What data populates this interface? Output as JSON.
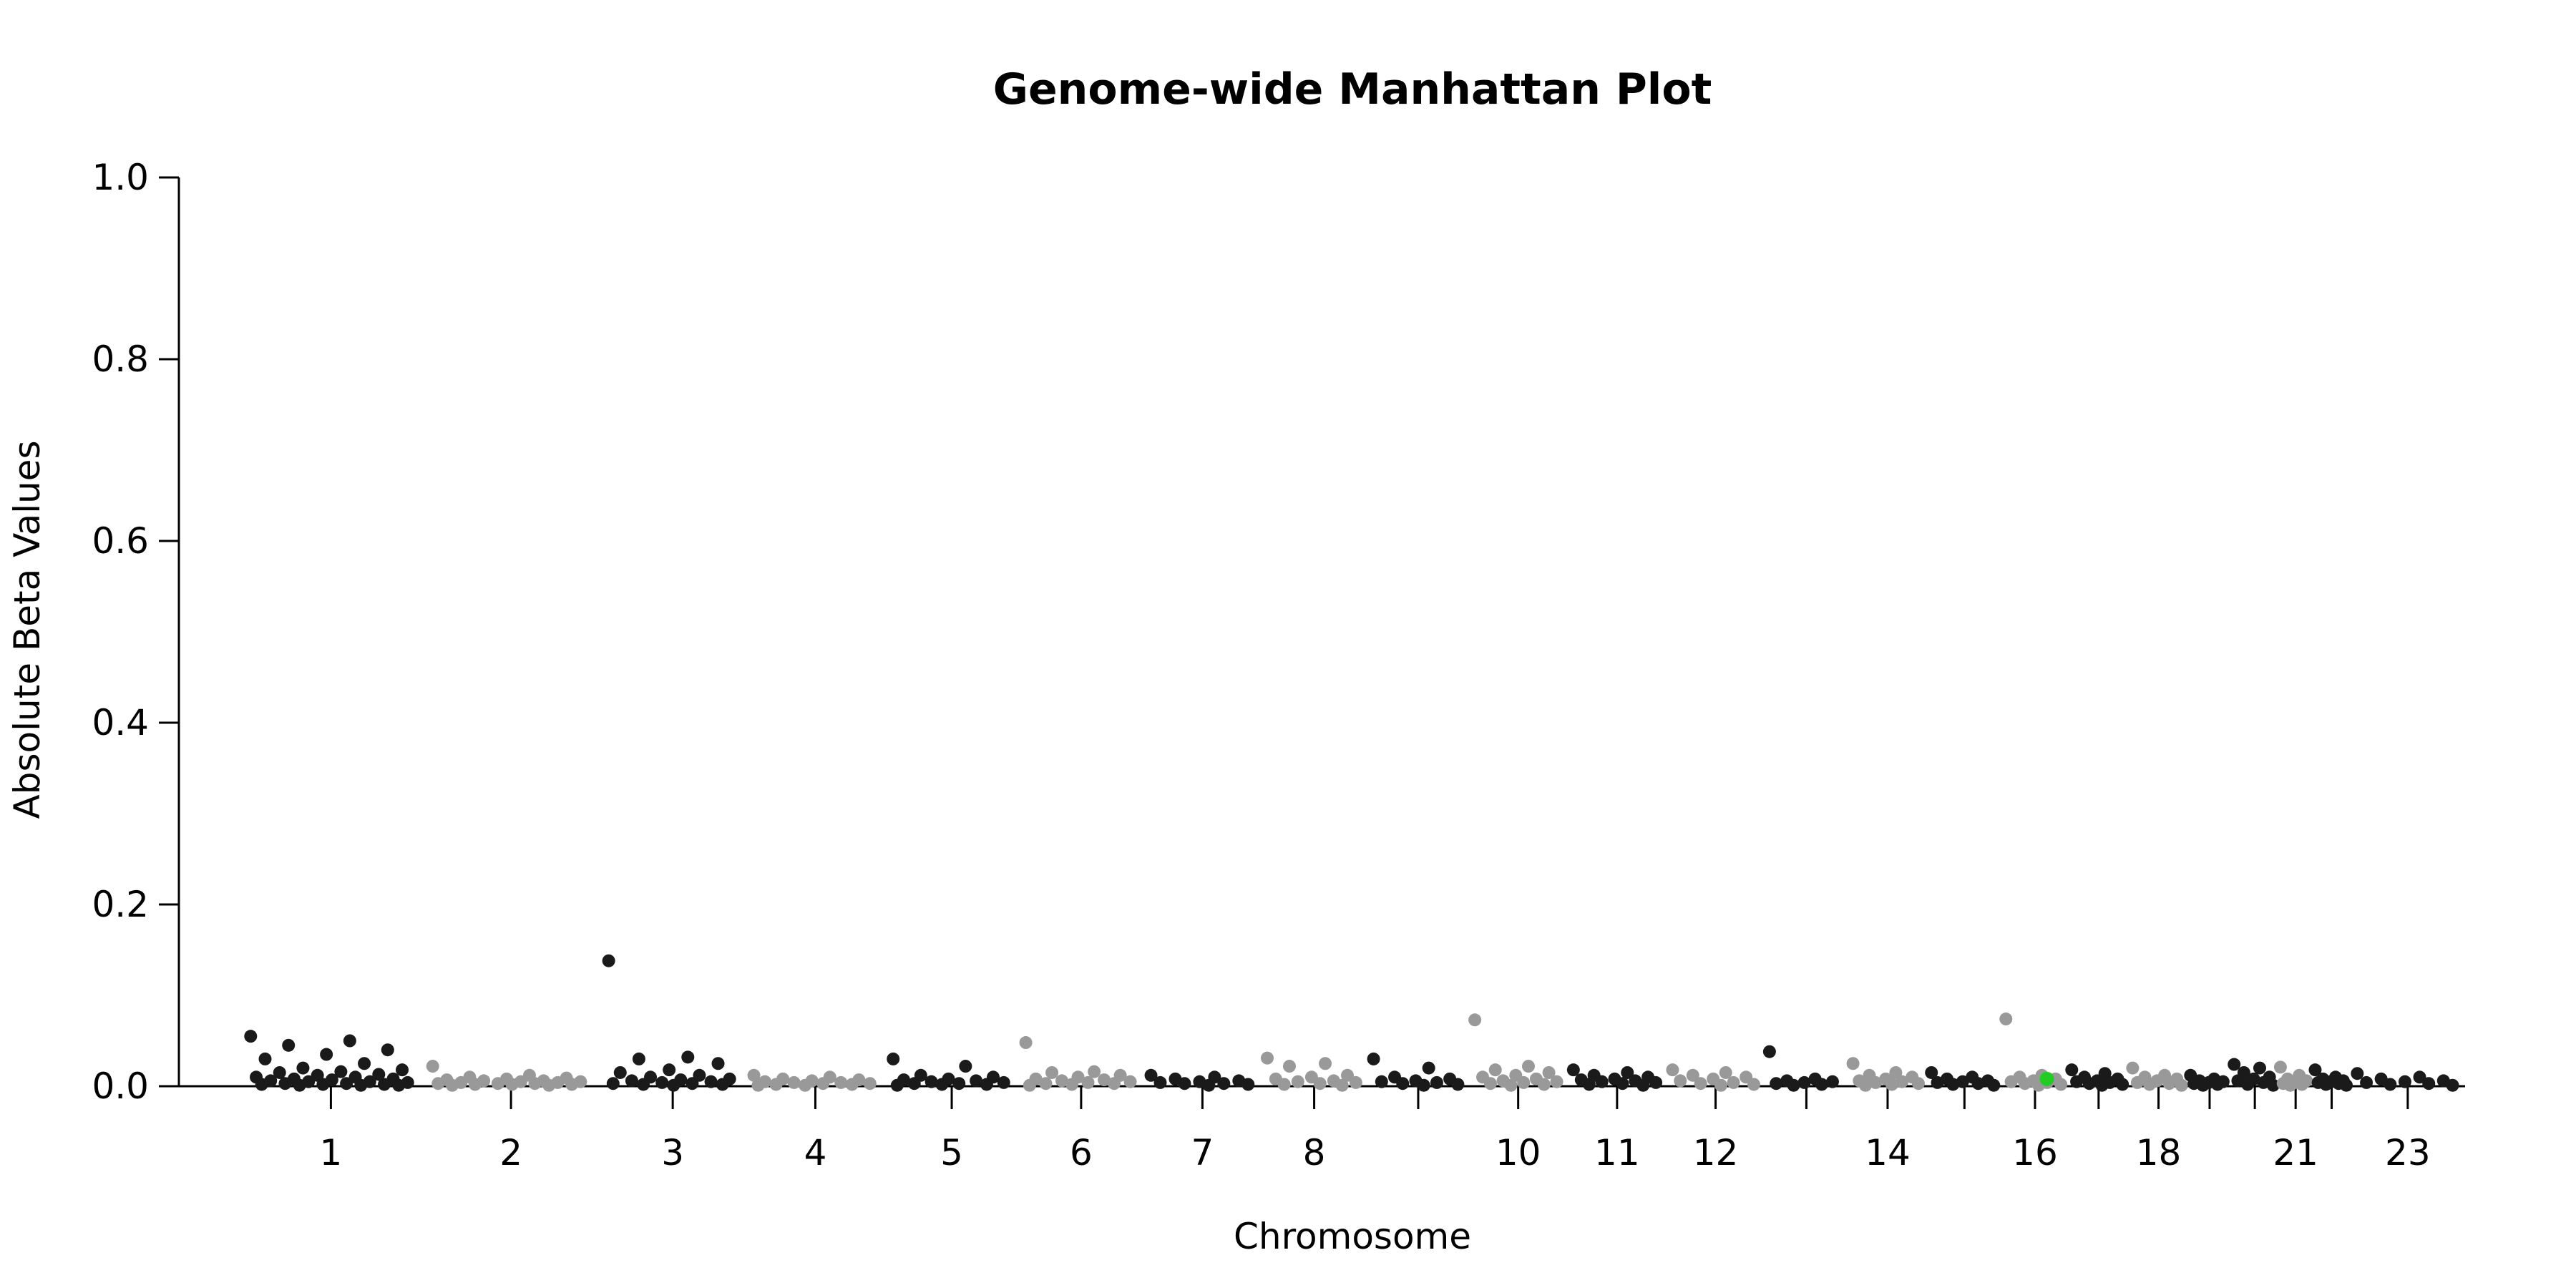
{
  "chart_data": {
    "type": "scatter",
    "title": "Genome-wide Manhattan Plot",
    "xlabel": "Chromosome",
    "ylabel": "Absolute Beta Values",
    "ylim": [
      0,
      1.0
    ],
    "y_ticks": [
      "0.0",
      "0.2",
      "0.4",
      "0.6",
      "0.8",
      "1.0"
    ],
    "x_tick_labels": [
      "1",
      "2",
      "3",
      "4",
      "5",
      "6",
      "7",
      "8",
      "10",
      "11",
      "12",
      "14",
      "16",
      "18",
      "21",
      "23"
    ],
    "grid": false,
    "legend": "none",
    "colors": {
      "odd": "#1a1a1a",
      "even": "#999999",
      "highlight": "#22cc22"
    },
    "chromosomes": [
      {
        "chr": 1,
        "label": "1",
        "color": "#1a1a1a",
        "points": [
          0.055,
          0.05,
          0.045,
          0.04,
          0.035,
          0.03,
          0.025,
          0.02,
          0.018,
          0.016,
          0.015,
          0.013,
          0.012,
          0.01,
          0.01,
          0.008,
          0.008,
          0.007,
          0.006,
          0.005,
          0.005,
          0.004,
          0.003,
          0.003,
          0.002,
          0.002,
          0.002,
          0.001,
          0.001,
          0.001
        ]
      },
      {
        "chr": 2,
        "label": "2",
        "color": "#999999",
        "points": [
          0.022,
          0.012,
          0.01,
          0.009,
          0.008,
          0.007,
          0.006,
          0.006,
          0.005,
          0.005,
          0.004,
          0.004,
          0.003,
          0.003,
          0.003,
          0.002,
          0.002,
          0.002,
          0.001,
          0.001
        ]
      },
      {
        "chr": 3,
        "label": "3",
        "color": "#1a1a1a",
        "points": [
          0.138,
          0.032,
          0.03,
          0.025,
          0.018,
          0.015,
          0.012,
          0.01,
          0.008,
          0.007,
          0.006,
          0.005,
          0.004,
          0.003,
          0.003,
          0.002,
          0.002,
          0.001
        ]
      },
      {
        "chr": 4,
        "label": "4",
        "color": "#999999",
        "points": [
          0.012,
          0.01,
          0.008,
          0.007,
          0.006,
          0.005,
          0.004,
          0.004,
          0.003,
          0.003,
          0.002,
          0.002,
          0.001,
          0.001
        ]
      },
      {
        "chr": 5,
        "label": "5",
        "color": "#1a1a1a",
        "points": [
          0.03,
          0.022,
          0.012,
          0.01,
          0.008,
          0.007,
          0.006,
          0.005,
          0.004,
          0.003,
          0.003,
          0.002,
          0.002,
          0.001
        ]
      },
      {
        "chr": 6,
        "label": "6",
        "color": "#999999",
        "points": [
          0.048,
          0.016,
          0.015,
          0.012,
          0.01,
          0.008,
          0.007,
          0.006,
          0.005,
          0.004,
          0.003,
          0.003,
          0.002,
          0.001
        ]
      },
      {
        "chr": 7,
        "label": "7",
        "color": "#1a1a1a",
        "points": [
          0.012,
          0.01,
          0.008,
          0.006,
          0.005,
          0.004,
          0.003,
          0.003,
          0.002,
          0.001
        ]
      },
      {
        "chr": 8,
        "label": "8",
        "color": "#999999",
        "points": [
          0.031,
          0.025,
          0.022,
          0.012,
          0.01,
          0.008,
          0.006,
          0.005,
          0.004,
          0.003,
          0.002,
          0.001
        ]
      },
      {
        "chr": 9,
        "label": "",
        "color": "#1a1a1a",
        "points": [
          0.03,
          0.02,
          0.01,
          0.008,
          0.006,
          0.005,
          0.004,
          0.003,
          0.002,
          0.001
        ]
      },
      {
        "chr": 10,
        "label": "10",
        "color": "#999999",
        "points": [
          0.073,
          0.022,
          0.018,
          0.015,
          0.012,
          0.01,
          0.008,
          0.006,
          0.005,
          0.004,
          0.003,
          0.002,
          0.001
        ]
      },
      {
        "chr": 11,
        "label": "11",
        "color": "#1a1a1a",
        "points": [
          0.018,
          0.015,
          0.012,
          0.01,
          0.008,
          0.007,
          0.006,
          0.005,
          0.004,
          0.003,
          0.002,
          0.001
        ]
      },
      {
        "chr": 12,
        "label": "12",
        "color": "#999999",
        "points": [
          0.018,
          0.015,
          0.012,
          0.01,
          0.008,
          0.006,
          0.004,
          0.003,
          0.002,
          0.001
        ]
      },
      {
        "chr": 13,
        "label": "",
        "color": "#1a1a1a",
        "points": [
          0.038,
          0.008,
          0.006,
          0.005,
          0.004,
          0.003,
          0.002,
          0.001
        ]
      },
      {
        "chr": 14,
        "label": "14",
        "color": "#999999",
        "points": [
          0.025,
          0.015,
          0.012,
          0.01,
          0.008,
          0.006,
          0.005,
          0.004,
          0.003,
          0.002,
          0.001
        ]
      },
      {
        "chr": 15,
        "label": "",
        "color": "#1a1a1a",
        "points": [
          0.015,
          0.01,
          0.008,
          0.006,
          0.005,
          0.004,
          0.003,
          0.002,
          0.001
        ]
      },
      {
        "chr": 16,
        "label": "16",
        "color": "#999999",
        "points": [
          0.074,
          0.012,
          0.01,
          0.008,
          0.006,
          0.005,
          0.004,
          0.003,
          0.002,
          0.001
        ]
      },
      {
        "chr": 17,
        "label": "",
        "color": "#1a1a1a",
        "points": [
          0.018,
          0.014,
          0.01,
          0.008,
          0.006,
          0.005,
          0.004,
          0.003,
          0.002,
          0.001
        ]
      },
      {
        "chr": 18,
        "label": "18",
        "color": "#999999",
        "points": [
          0.02,
          0.012,
          0.01,
          0.008,
          0.006,
          0.004,
          0.003,
          0.002,
          0.001
        ]
      },
      {
        "chr": 19,
        "label": "",
        "color": "#1a1a1a",
        "points": [
          0.012,
          0.008,
          0.006,
          0.005,
          0.004,
          0.003,
          0.002,
          0.001
        ]
      },
      {
        "chr": 20,
        "label": "",
        "color": "#1a1a1a",
        "points": [
          0.024,
          0.02,
          0.015,
          0.01,
          0.008,
          0.006,
          0.004,
          0.002,
          0.001
        ]
      },
      {
        "chr": 21,
        "label": "21",
        "color": "#999999",
        "points": [
          0.021,
          0.012,
          0.008,
          0.006,
          0.004,
          0.003,
          0.002,
          0.001
        ]
      },
      {
        "chr": 22,
        "label": "",
        "color": "#1a1a1a",
        "points": [
          0.018,
          0.01,
          0.008,
          0.006,
          0.005,
          0.004,
          0.003,
          0.002,
          0.001
        ]
      },
      {
        "chr": 23,
        "label": "23",
        "color": "#1a1a1a",
        "points": [
          0.014,
          0.01,
          0.008,
          0.006,
          0.005,
          0.004,
          0.003,
          0.002,
          0.001
        ]
      }
    ],
    "highlight_point": {
      "chr": 16,
      "value": 0.008,
      "color": "#22cc22"
    }
  }
}
